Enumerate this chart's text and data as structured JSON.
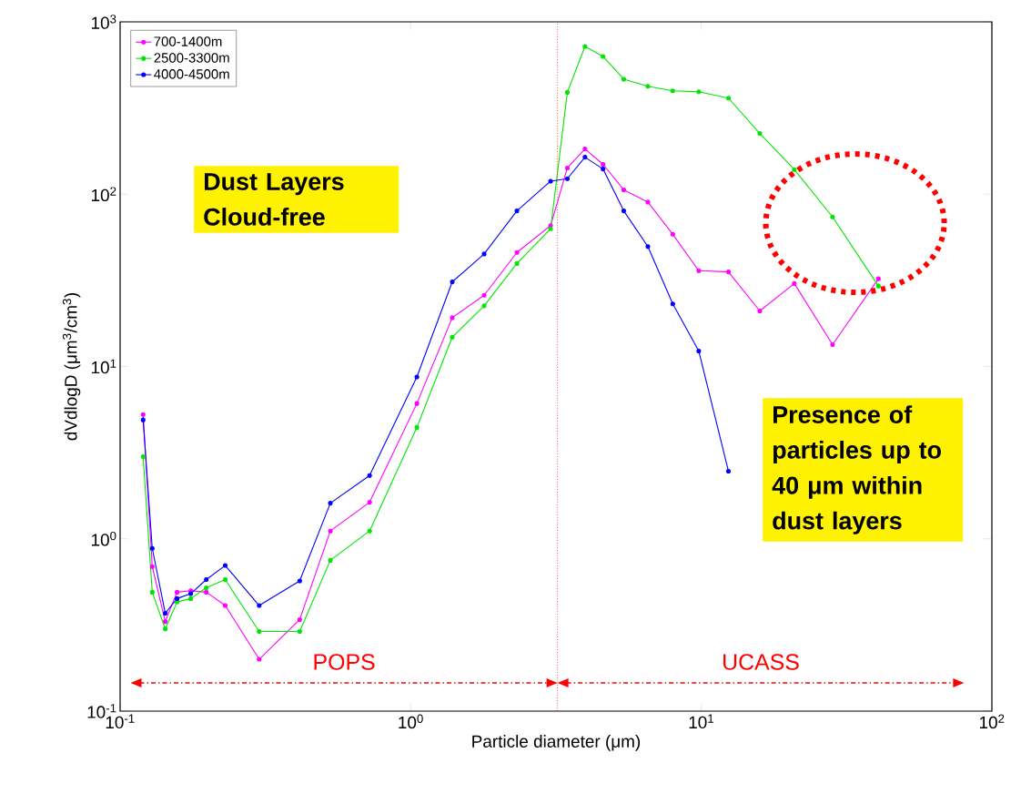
{
  "chart_data": {
    "type": "line",
    "xlabel": "Particle diameter (μm)",
    "ylabel": "dVdlogD (μm$^{3}$/cm$^{3}$)",
    "x": [
      0.12,
      0.129,
      0.143,
      0.157,
      0.175,
      0.198,
      0.23,
      0.301,
      0.415,
      0.529,
      0.722,
      1.05,
      1.39,
      1.79,
      2.32,
      3.03,
      3.46,
      3.98,
      4.59,
      5.41,
      6.55,
      7.98,
      9.8,
      12.4,
      15.9,
      20.9,
      28.3,
      40.7
    ],
    "series": [
      {
        "name": "700-1400m",
        "color": "#ff00ff",
        "values": [
          5.26,
          0.69,
          0.331,
          0.49,
          0.5,
          0.49,
          0.41,
          0.2,
          0.34,
          1.11,
          1.63,
          6.1,
          19.2,
          25.9,
          45.9,
          65.7,
          142,
          183,
          149,
          106,
          90,
          58.5,
          36,
          35.4,
          21.0,
          30.3,
          13.4,
          32.3
        ]
      },
      {
        "name": "2500-3300m",
        "color": "#00e600",
        "values": [
          3.0,
          0.49,
          0.3,
          0.43,
          0.45,
          0.52,
          0.58,
          0.29,
          0.29,
          0.75,
          1.11,
          4.43,
          14.8,
          22.5,
          39.6,
          63,
          390,
          720,
          630,
          465,
          423,
          398,
          393,
          361,
          225,
          139,
          73.8,
          29.3
        ]
      },
      {
        "name": "4000-4500m",
        "color": "#0000ff",
        "values": [
          4.9,
          0.88,
          0.37,
          0.45,
          0.48,
          0.58,
          0.7,
          0.41,
          0.57,
          1.61,
          2.33,
          8.7,
          31,
          45,
          80,
          119,
          123,
          164,
          140,
          80,
          49.7,
          23.1,
          12.3,
          2.47,
          null,
          null,
          null,
          null
        ]
      }
    ],
    "xlim": [
      0.1,
      100
    ],
    "ylim": [
      0.1,
      1000
    ],
    "xticks": [
      {
        "value": 0.1,
        "label": "10$^{-1}$"
      },
      {
        "value": 1,
        "label": "10$^{0}$"
      },
      {
        "value": 10,
        "label": "10$^{1}$"
      },
      {
        "value": 100,
        "label": "10$^{2}$"
      }
    ],
    "yticks": [
      {
        "value": 0.1,
        "label": "10$^{-1}$"
      },
      {
        "value": 1,
        "label": "10$^{0}$"
      },
      {
        "value": 10,
        "label": "10$^{1}$"
      },
      {
        "value": 100,
        "label": "10$^{2}$"
      },
      {
        "value": 1000,
        "label": "10$^{3}$"
      }
    ],
    "log": "xy",
    "grid": false,
    "legend": "top left",
    "marker": "circle",
    "line_style": "solid",
    "ref_lines": [
      {
        "axis": "x",
        "value": 3.2,
        "color": "#ff0000",
        "line_style": "dotted"
      }
    ],
    "annotations": [
      "Dust Layers Cloud-free",
      "Presence of particles up to 40 μm within dust layers",
      "POPS",
      "UCASS"
    ]
  }
}
